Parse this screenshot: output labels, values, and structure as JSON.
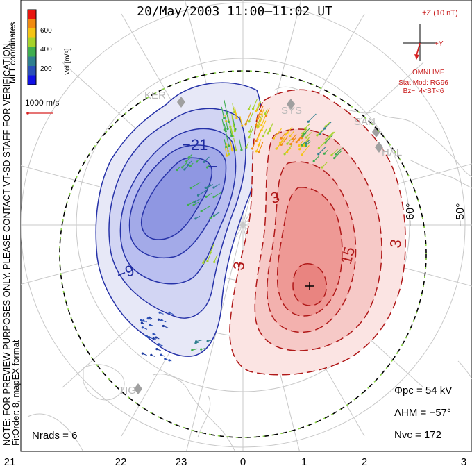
{
  "title": "20/May/2003 11:00–11:02 UT",
  "colorbar": {
    "title": "Vel [m/s]",
    "ticks": [
      "600",
      "400",
      "200"
    ],
    "colors": [
      "#e8160f",
      "#f18a10",
      "#f5c414",
      "#a6d32a",
      "#3fae4f",
      "#2f7f8f",
      "#2a4fb8",
      "#1010e6"
    ]
  },
  "coord_note": "MLT coordinates",
  "speed_key": "1000 m/s",
  "imf": {
    "z_label": "+Z (10 nT)",
    "y_label": "+Y",
    "source": "OMNI IMF",
    "model": "Stat Mod: RG96",
    "cond": "Bz−, 4<BT<6"
  },
  "stations": [
    "KER",
    "SYS",
    "SAN",
    "HAL",
    "TIG"
  ],
  "lat_labels": [
    "−60°",
    "−50°"
  ],
  "contour_labels": [
    "−21",
    "−9",
    "3",
    "3",
    "15",
    "3"
  ],
  "note": "NOTE: FOR PREVIEW PURPOSES ONLY. PLEASE CONTACT VT-SD STAFF FOR VERIFICATION.",
  "fit": "FitOrder: 8, mapEX format",
  "stats": {
    "phi": "Φpc = 54 kV",
    "lambda": "ΛHM = −57°",
    "nvc": "Nvc = 172",
    "nrads": "Nrads = 6"
  },
  "mlt_labels": [
    "21",
    "22",
    "23",
    "0",
    "1",
    "2",
    "3"
  ]
}
